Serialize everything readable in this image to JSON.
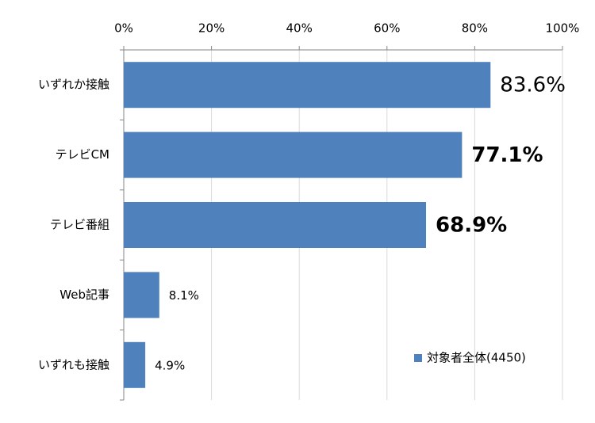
{
  "chart_data": {
    "type": "bar",
    "orientation": "horizontal",
    "categories": [
      "いずれか接触",
      "テレビCM",
      "テレビ番組",
      "Web記事",
      "いずれも接触"
    ],
    "series": [
      {
        "name": "対象者全体(4450)",
        "color": "#4f81bd",
        "values": [
          83.6,
          77.1,
          68.9,
          8.1,
          4.9
        ],
        "value_labels": [
          "83.6%",
          "77.1%",
          "68.9%",
          "8.1%",
          "4.9%"
        ],
        "value_label_colors": [
          "#000000",
          "#ff0000",
          "#ff0000",
          "#000000",
          "#000000"
        ]
      }
    ],
    "xlim": [
      0,
      100
    ],
    "xticks": [
      {
        "value": 0,
        "label": "0%"
      },
      {
        "value": 20,
        "label": "20%"
      },
      {
        "value": 40,
        "label": "40%"
      },
      {
        "value": 60,
        "label": "60%"
      },
      {
        "value": 80,
        "label": "80%"
      },
      {
        "value": 100,
        "label": "100%"
      }
    ],
    "grid": true,
    "legend": "lower-right"
  }
}
